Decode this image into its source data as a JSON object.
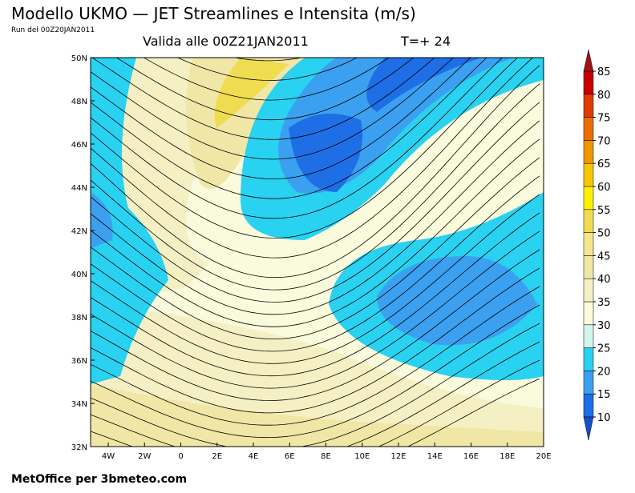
{
  "header": {
    "title": "Modello UKMO  — JET Streamlines e Intensita (m/s)",
    "run": "Run del 00Z20JAN2011",
    "valid": "Valida alle 00Z21JAN2011",
    "step": "T=+ 24"
  },
  "map": {
    "lon_labels": [
      "4W",
      "2W",
      "0",
      "2E",
      "4E",
      "6E",
      "8E",
      "10E",
      "12E",
      "14E",
      "16E",
      "18E",
      "20E"
    ],
    "lat_labels": [
      "32N",
      "34N",
      "36N",
      "38N",
      "40N",
      "42N",
      "44N",
      "46N",
      "48N",
      "50N"
    ]
  },
  "colorbar": {
    "levels": [
      10,
      15,
      20,
      25,
      30,
      35,
      40,
      45,
      50,
      55,
      60,
      65,
      70,
      75,
      80,
      85
    ],
    "colors": [
      "#1e6ee6",
      "#3ca0f0",
      "#28d2f0",
      "#d2f5f0",
      "#fafadc",
      "#f5f0c3",
      "#f0e6a5",
      "#f5e68c",
      "#f0dc50",
      "#fff000",
      "#f5c800",
      "#f09600",
      "#eb6e00",
      "#e13c00",
      "#c80000"
    ],
    "below_color": "#1450c8",
    "above_color": "#a01414"
  },
  "footer": "MetOffice per 3bmeteo.com"
}
